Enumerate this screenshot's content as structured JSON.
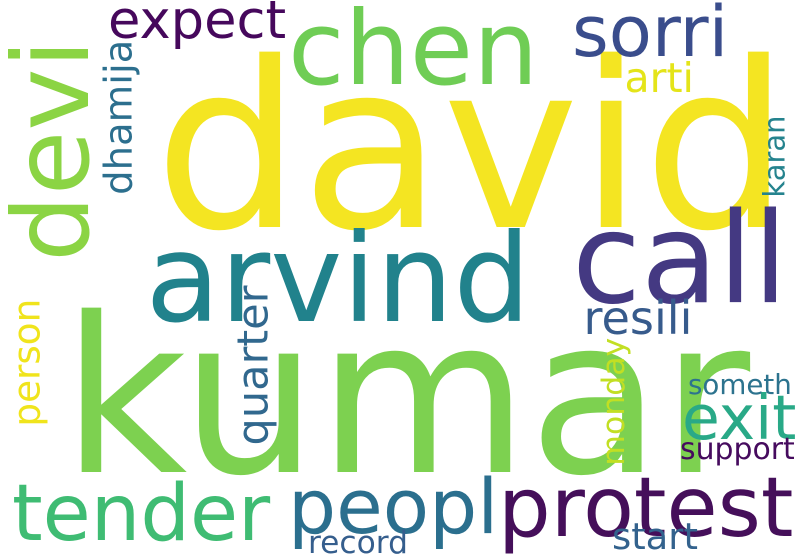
{
  "words": [
    {
      "text": "david",
      "color": "#f4e522",
      "vertical": false
    },
    {
      "text": "kumar",
      "color": "#7dd150",
      "vertical": false
    },
    {
      "text": "arvind",
      "color": "#21828c",
      "vertical": false
    },
    {
      "text": "chen",
      "color": "#6fcd55",
      "vertical": false
    },
    {
      "text": "call",
      "color": "#443982",
      "vertical": false
    },
    {
      "text": "devi",
      "color": "#8bd444",
      "vertical": true
    },
    {
      "text": "protest",
      "color": "#450f5a",
      "vertical": false
    },
    {
      "text": "peopl",
      "color": "#2b6f8e",
      "vertical": false
    },
    {
      "text": "tender",
      "color": "#3fbc73",
      "vertical": false
    },
    {
      "text": "sorri",
      "color": "#3a4d8c",
      "vertical": false
    },
    {
      "text": "expect",
      "color": "#46085c",
      "vertical": false
    },
    {
      "text": "exit",
      "color": "#29a987",
      "vertical": false
    },
    {
      "text": "dhamija",
      "color": "#2c6f8e",
      "vertical": true
    },
    {
      "text": "arti",
      "color": "#e4e419",
      "vertical": false
    },
    {
      "text": "karan",
      "color": "#25838e",
      "vertical": true
    },
    {
      "text": "resili",
      "color": "#375b8c",
      "vertical": false
    },
    {
      "text": "quarter",
      "color": "#31688e",
      "vertical": true
    },
    {
      "text": "person",
      "color": "#f0e41c",
      "vertical": true
    },
    {
      "text": "monday",
      "color": "#c2df23",
      "vertical": true
    },
    {
      "text": "someth",
      "color": "#2c738e",
      "vertical": false
    },
    {
      "text": "support",
      "color": "#460b5e",
      "vertical": false
    },
    {
      "text": "record",
      "color": "#355e8d",
      "vertical": false
    },
    {
      "text": "start",
      "color": "#33628d",
      "vertical": false
    }
  ]
}
